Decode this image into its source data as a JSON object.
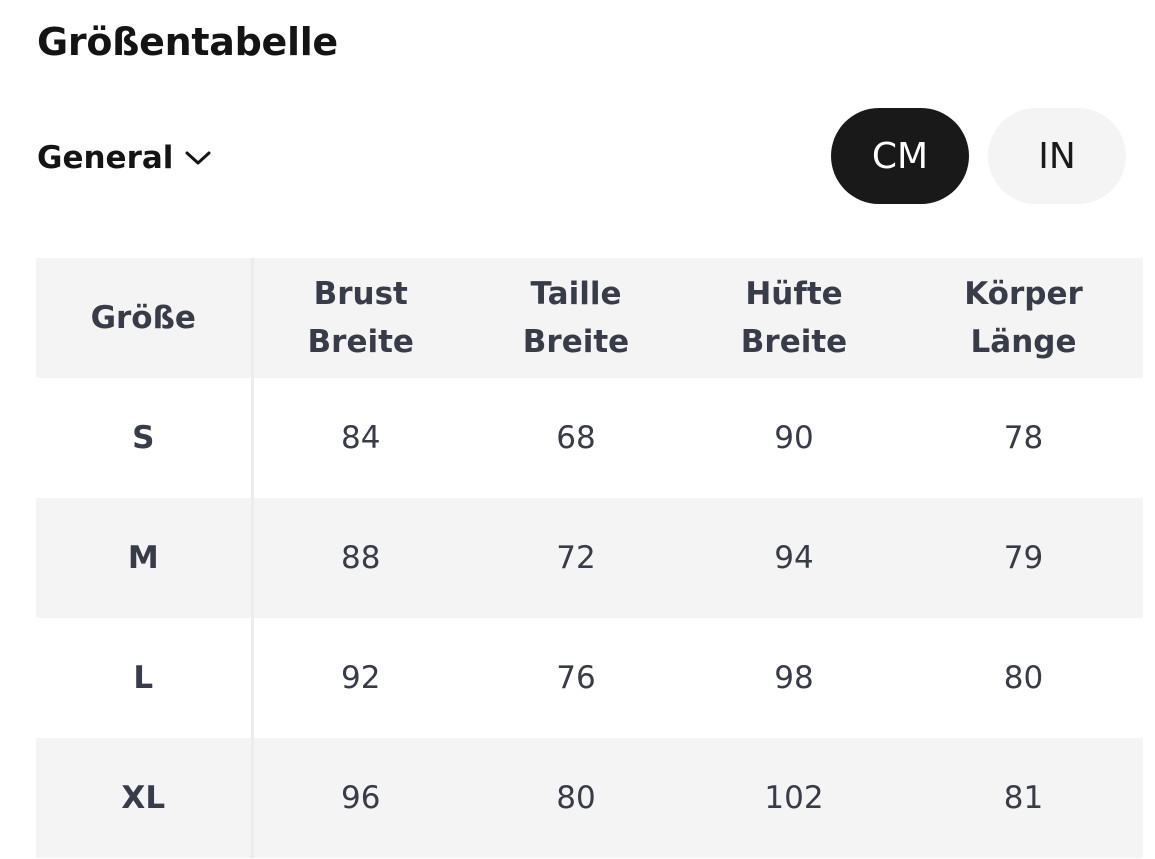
{
  "header": {
    "title": "Größentabelle"
  },
  "filter": {
    "label": "General",
    "icon": "chevron-down-icon"
  },
  "units": {
    "cm_label": "CM",
    "in_label": "IN",
    "selected": "CM"
  },
  "table": {
    "columns": [
      {
        "line1": "Größe",
        "line2": ""
      },
      {
        "line1": "Brust",
        "line2": "Breite"
      },
      {
        "line1": "Taille",
        "line2": "Breite"
      },
      {
        "line1": "Hüfte",
        "line2": "Breite"
      },
      {
        "line1": "Körper",
        "line2": "Länge"
      }
    ],
    "rows": [
      {
        "size": "S",
        "values": [
          "84",
          "68",
          "90",
          "78"
        ]
      },
      {
        "size": "M",
        "values": [
          "88",
          "72",
          "94",
          "79"
        ]
      },
      {
        "size": "L",
        "values": [
          "92",
          "76",
          "98",
          "80"
        ]
      },
      {
        "size": "XL",
        "values": [
          "96",
          "80",
          "102",
          "81"
        ]
      }
    ]
  }
}
